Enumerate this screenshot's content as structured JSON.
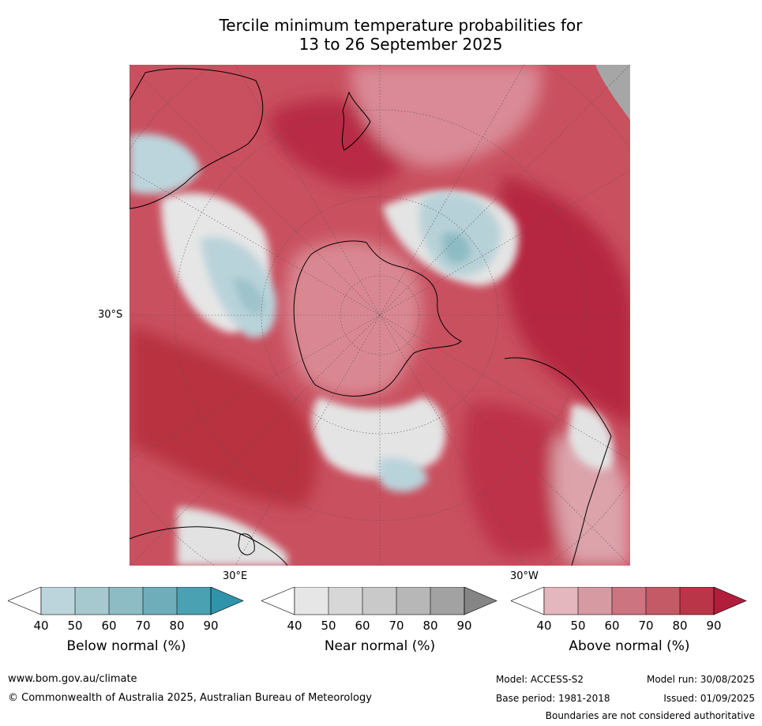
{
  "title": {
    "line1": "Tercile minimum temperature probabilities for",
    "line2": "13 to 26 September 2025"
  },
  "axis_labels": {
    "lat_30s": "30°S",
    "lon_30e": "30°E",
    "lon_30w": "30°W"
  },
  "colorbars": [
    {
      "title": "Below normal (%)",
      "ticks": [
        "40",
        "50",
        "60",
        "70",
        "80",
        "90"
      ],
      "colors": [
        "#ffffff",
        "#bcd5dc",
        "#a6c8cf",
        "#8ebcc4",
        "#6eadb9",
        "#4aa1b2",
        "#2f93a9"
      ]
    },
    {
      "title": "Near normal (%)",
      "ticks": [
        "40",
        "50",
        "60",
        "70",
        "80",
        "90"
      ],
      "colors": [
        "#ffffff",
        "#e6e6e6",
        "#d7d7d7",
        "#c9c9c9",
        "#b7b7b7",
        "#a2a2a2",
        "#858585"
      ]
    },
    {
      "title": "Above normal (%)",
      "ticks": [
        "40",
        "50",
        "60",
        "70",
        "80",
        "90"
      ],
      "colors": [
        "#ffffff",
        "#e3b7bd",
        "#d69aa2",
        "#cc7480",
        "#c55a67",
        "#bb3548",
        "#b01e3b"
      ]
    }
  ],
  "footer": {
    "website": "www.bom.gov.au/climate",
    "copyright": "© Commonwealth of Australia 2025, Australian Bureau of Meteorology",
    "model": "Model: ACCESS-S2",
    "base_period": "Base period: 1981-2018",
    "model_run": "Model run: 30/08/2025",
    "issued": "Issued: 01/09/2025",
    "disclaimer": "Boundaries are not considered authoritative"
  },
  "map_colors": {
    "above_light": "#e3b7bd",
    "above_mid": "#cc7480",
    "above_strong": "#c55a67",
    "above_deep": "#bb3548",
    "near": "#e2e2e2",
    "below": "#b9d3da",
    "below_mid": "#8ebcc4",
    "land_outline": "#000000"
  }
}
